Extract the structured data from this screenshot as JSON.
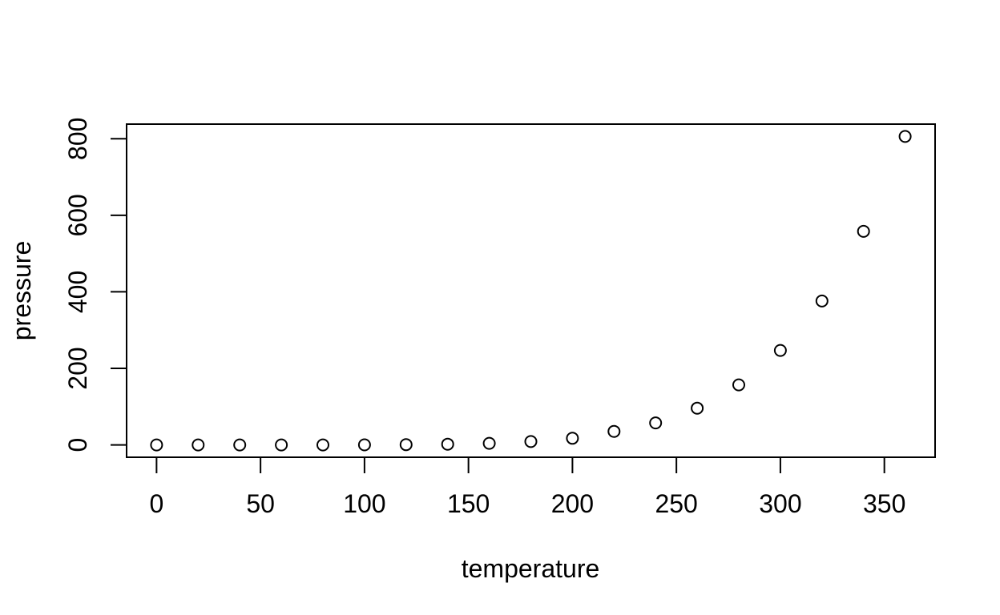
{
  "figure": {
    "background": "#ffffff",
    "foreground": "#000000"
  },
  "chart_data": {
    "type": "scatter",
    "title": "",
    "xlabel": "temperature",
    "ylabel": "pressure",
    "x": [
      0,
      20,
      40,
      60,
      80,
      100,
      120,
      140,
      160,
      180,
      200,
      220,
      240,
      260,
      280,
      300,
      320,
      340,
      360
    ],
    "y": [
      0.0002,
      0.0012,
      0.006,
      0.03,
      0.09,
      0.27,
      0.75,
      1.85,
      4.2,
      8.8,
      17.3,
      35.3,
      57.5,
      96,
      157,
      247,
      376,
      558,
      806
    ],
    "xticks": [
      0,
      50,
      100,
      150,
      200,
      250,
      300,
      350
    ],
    "xtick_labels": [
      "0",
      "50",
      "100",
      "150",
      "200",
      "250",
      "300",
      "350"
    ],
    "yticks": [
      0,
      200,
      400,
      600,
      800
    ],
    "ytick_labels": [
      "0",
      "200",
      "400",
      "600",
      "800"
    ],
    "xlim": [
      -14.4,
      374.4
    ],
    "ylim": [
      -32.2,
      838.2
    ],
    "grid": false,
    "legend": null,
    "marker": "open-circle",
    "marker_color": "#000000",
    "marker_radius": 7
  }
}
